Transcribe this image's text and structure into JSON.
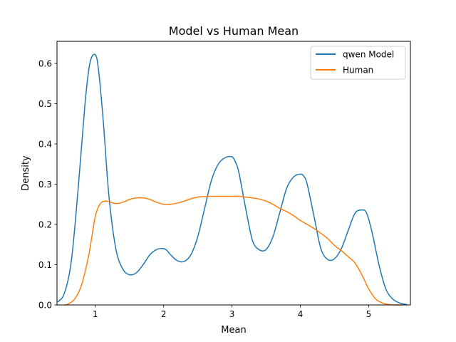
{
  "chart_data": {
    "type": "line",
    "title": "Model vs Human Mean",
    "xlabel": "Mean",
    "ylabel": "Density",
    "xlim": [
      0.44,
      5.61
    ],
    "ylim": [
      0.0,
      0.655
    ],
    "xticks": [
      1,
      2,
      3,
      4,
      5
    ],
    "yticks": [
      0.0,
      0.1,
      0.2,
      0.3,
      0.4,
      0.5,
      0.6
    ],
    "ytick_labels": [
      "0.0",
      "0.1",
      "0.2",
      "0.3",
      "0.4",
      "0.5",
      "0.6"
    ],
    "grid": false,
    "legend_position": "top-right",
    "series": [
      {
        "name": "qwen Model",
        "color": "#1f77b4",
        "x": [
          0.45,
          0.55,
          0.65,
          0.75,
          0.85,
          0.92,
          1.0,
          1.05,
          1.12,
          1.2,
          1.3,
          1.4,
          1.5,
          1.6,
          1.7,
          1.8,
          1.9,
          2.0,
          2.05,
          2.1,
          2.2,
          2.3,
          2.4,
          2.5,
          2.6,
          2.7,
          2.8,
          2.9,
          3.0,
          3.05,
          3.1,
          3.2,
          3.3,
          3.4,
          3.5,
          3.6,
          3.7,
          3.8,
          3.9,
          4.0,
          4.05,
          4.1,
          4.2,
          4.3,
          4.4,
          4.5,
          4.6,
          4.7,
          4.8,
          4.9,
          4.97,
          5.05,
          5.15,
          5.25,
          5.35,
          5.45,
          5.56
        ],
        "y": [
          0.007,
          0.03,
          0.11,
          0.29,
          0.5,
          0.6,
          0.622,
          0.58,
          0.45,
          0.27,
          0.14,
          0.09,
          0.075,
          0.08,
          0.1,
          0.125,
          0.138,
          0.14,
          0.135,
          0.125,
          0.11,
          0.108,
          0.125,
          0.17,
          0.24,
          0.31,
          0.35,
          0.366,
          0.368,
          0.355,
          0.33,
          0.24,
          0.16,
          0.137,
          0.138,
          0.17,
          0.23,
          0.29,
          0.318,
          0.325,
          0.32,
          0.3,
          0.22,
          0.14,
          0.113,
          0.115,
          0.14,
          0.185,
          0.228,
          0.236,
          0.228,
          0.18,
          0.1,
          0.04,
          0.015,
          0.005,
          0.001
        ]
      },
      {
        "name": "Human",
        "color": "#ff7f0e",
        "x": [
          0.55,
          0.6,
          0.7,
          0.8,
          0.9,
          0.95,
          1.0,
          1.05,
          1.1,
          1.15,
          1.2,
          1.3,
          1.4,
          1.5,
          1.6,
          1.7,
          1.8,
          1.9,
          2.0,
          2.1,
          2.2,
          2.3,
          2.4,
          2.5,
          2.6,
          2.7,
          2.8,
          2.9,
          3.0,
          3.1,
          3.2,
          3.3,
          3.4,
          3.5,
          3.6,
          3.7,
          3.8,
          3.9,
          4.0,
          4.1,
          4.2,
          4.3,
          4.4,
          4.5,
          4.6,
          4.7,
          4.8,
          4.9,
          5.0,
          5.1,
          5.2,
          5.3,
          5.4,
          5.5
        ],
        "y": [
          0.0,
          0.002,
          0.015,
          0.05,
          0.12,
          0.17,
          0.22,
          0.245,
          0.256,
          0.258,
          0.257,
          0.252,
          0.255,
          0.262,
          0.266,
          0.266,
          0.262,
          0.255,
          0.25,
          0.25,
          0.253,
          0.258,
          0.264,
          0.268,
          0.269,
          0.27,
          0.27,
          0.27,
          0.27,
          0.27,
          0.268,
          0.266,
          0.263,
          0.258,
          0.25,
          0.24,
          0.232,
          0.222,
          0.21,
          0.2,
          0.19,
          0.178,
          0.165,
          0.148,
          0.135,
          0.12,
          0.104,
          0.075,
          0.04,
          0.015,
          0.005,
          0.001,
          0.0,
          0.0
        ]
      }
    ]
  }
}
